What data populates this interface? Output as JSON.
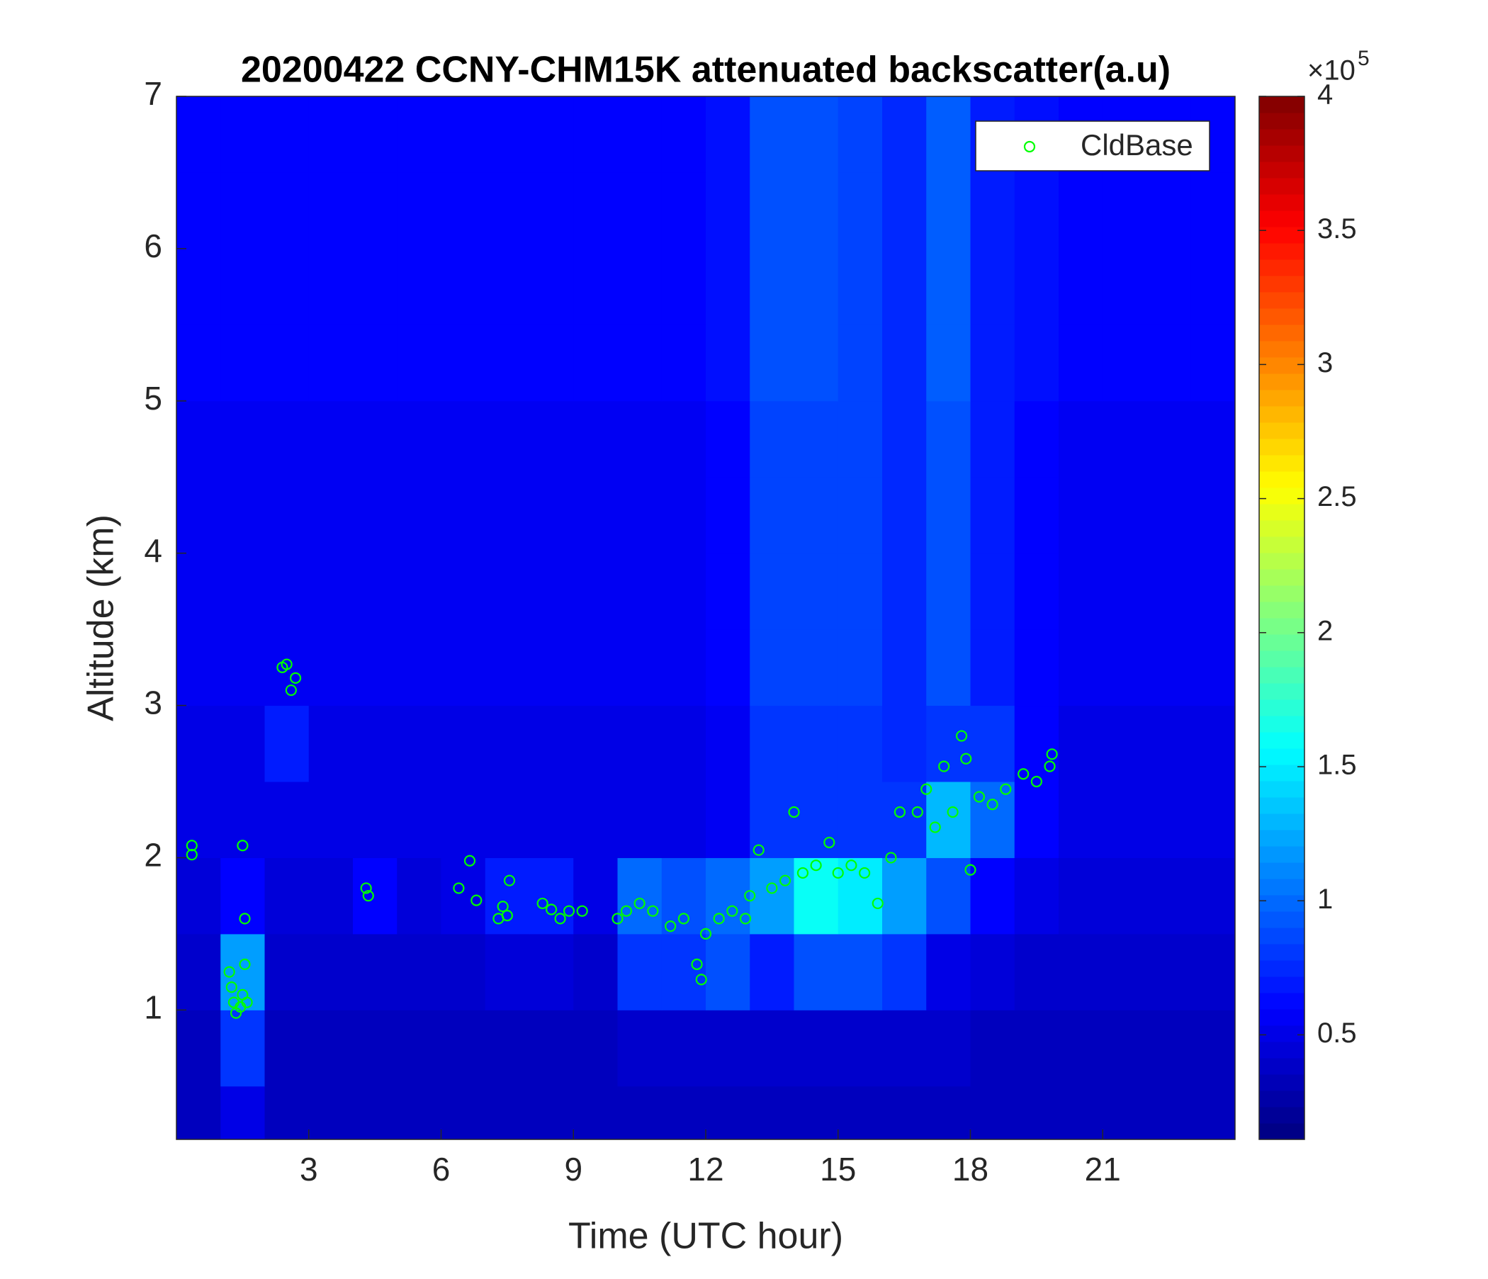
{
  "chart_data": {
    "type": "heatmap",
    "title": "20200422 CCNY-CHM15K attenuated backscatter(a.u)",
    "xlabel": "Time (UTC hour)",
    "ylabel": "Altitude (km)",
    "xlim": [
      0,
      24
    ],
    "xticks": [
      3,
      6,
      9,
      12,
      15,
      18,
      21
    ],
    "ylim": [
      0.15,
      7
    ],
    "yticks": [
      1,
      2,
      3,
      4,
      5,
      6,
      7
    ],
    "clim": [
      0.11,
      4
    ],
    "cticks": [
      0.5,
      1,
      1.5,
      2,
      2.5,
      3,
      3.5,
      4
    ],
    "colormap": "jet",
    "colorbar_multiplier": {
      "base": "×10",
      "exponent": "5"
    },
    "xbins": [
      0,
      1,
      2,
      3,
      4,
      5,
      6,
      7,
      8,
      9,
      10,
      11,
      12,
      13,
      14,
      15,
      16,
      17,
      18,
      19,
      20,
      21,
      22,
      23,
      24
    ],
    "ybins": [
      0.15,
      0.5,
      1,
      1.5,
      2,
      2.5,
      3,
      3.5,
      4,
      4.5,
      5,
      5.5,
      6,
      6.5,
      7
    ],
    "z": [
      [
        0.35,
        0.5,
        0.35,
        0.35,
        0.35,
        0.35,
        0.35,
        0.35,
        0.35,
        0.35,
        0.35,
        0.35,
        0.35,
        0.35,
        0.35,
        0.35,
        0.35,
        0.35,
        0.35,
        0.35,
        0.35,
        0.35,
        0.35,
        0.35
      ],
      [
        0.35,
        0.8,
        0.35,
        0.35,
        0.35,
        0.35,
        0.35,
        0.35,
        0.35,
        0.35,
        0.4,
        0.4,
        0.4,
        0.4,
        0.4,
        0.4,
        0.4,
        0.4,
        0.35,
        0.35,
        0.35,
        0.35,
        0.35,
        0.35
      ],
      [
        0.4,
        1.2,
        0.4,
        0.4,
        0.4,
        0.4,
        0.4,
        0.45,
        0.45,
        0.4,
        0.8,
        0.8,
        0.9,
        0.7,
        0.9,
        0.9,
        0.8,
        0.5,
        0.45,
        0.4,
        0.4,
        0.4,
        0.4,
        0.4
      ],
      [
        0.45,
        0.6,
        0.45,
        0.45,
        0.6,
        0.45,
        0.5,
        0.7,
        0.7,
        0.5,
        1.0,
        0.9,
        1.0,
        1.2,
        1.6,
        1.5,
        1.2,
        0.9,
        0.6,
        0.5,
        0.45,
        0.45,
        0.45,
        0.45
      ],
      [
        0.5,
        0.5,
        0.5,
        0.5,
        0.5,
        0.5,
        0.5,
        0.5,
        0.5,
        0.5,
        0.5,
        0.5,
        0.55,
        0.8,
        0.8,
        0.8,
        0.8,
        1.3,
        1.0,
        0.6,
        0.5,
        0.5,
        0.5,
        0.5
      ],
      [
        0.5,
        0.5,
        0.7,
        0.5,
        0.5,
        0.5,
        0.5,
        0.5,
        0.5,
        0.5,
        0.5,
        0.5,
        0.55,
        0.8,
        0.8,
        0.8,
        0.75,
        0.8,
        0.8,
        0.6,
        0.5,
        0.5,
        0.5,
        0.5
      ],
      [
        0.55,
        0.55,
        0.55,
        0.55,
        0.55,
        0.55,
        0.55,
        0.55,
        0.55,
        0.55,
        0.55,
        0.55,
        0.6,
        0.85,
        0.85,
        0.85,
        0.75,
        0.9,
        0.7,
        0.6,
        0.55,
        0.55,
        0.55,
        0.55
      ],
      [
        0.55,
        0.55,
        0.55,
        0.55,
        0.55,
        0.55,
        0.55,
        0.55,
        0.55,
        0.55,
        0.55,
        0.55,
        0.6,
        0.85,
        0.85,
        0.85,
        0.75,
        0.9,
        0.7,
        0.6,
        0.55,
        0.55,
        0.55,
        0.55
      ],
      [
        0.55,
        0.55,
        0.55,
        0.55,
        0.55,
        0.55,
        0.55,
        0.55,
        0.55,
        0.55,
        0.55,
        0.55,
        0.6,
        0.85,
        0.85,
        0.85,
        0.75,
        0.9,
        0.7,
        0.6,
        0.55,
        0.55,
        0.55,
        0.55
      ],
      [
        0.55,
        0.55,
        0.55,
        0.55,
        0.55,
        0.55,
        0.55,
        0.55,
        0.55,
        0.55,
        0.55,
        0.55,
        0.6,
        0.85,
        0.85,
        0.85,
        0.75,
        0.9,
        0.7,
        0.6,
        0.55,
        0.55,
        0.55,
        0.55
      ],
      [
        0.6,
        0.6,
        0.6,
        0.6,
        0.6,
        0.6,
        0.6,
        0.6,
        0.6,
        0.6,
        0.6,
        0.6,
        0.65,
        0.9,
        0.9,
        0.85,
        0.75,
        0.95,
        0.7,
        0.65,
        0.6,
        0.6,
        0.6,
        0.6
      ],
      [
        0.6,
        0.6,
        0.6,
        0.6,
        0.6,
        0.6,
        0.6,
        0.6,
        0.6,
        0.6,
        0.6,
        0.6,
        0.65,
        0.9,
        0.9,
        0.85,
        0.75,
        0.95,
        0.7,
        0.65,
        0.6,
        0.6,
        0.6,
        0.6
      ],
      [
        0.6,
        0.6,
        0.6,
        0.6,
        0.6,
        0.6,
        0.6,
        0.6,
        0.6,
        0.6,
        0.6,
        0.6,
        0.65,
        0.9,
        0.9,
        0.85,
        0.75,
        0.95,
        0.7,
        0.65,
        0.6,
        0.6,
        0.6,
        0.6
      ],
      [
        0.6,
        0.6,
        0.6,
        0.6,
        0.6,
        0.6,
        0.6,
        0.6,
        0.6,
        0.6,
        0.6,
        0.6,
        0.65,
        0.9,
        0.9,
        0.85,
        0.75,
        0.95,
        0.7,
        0.65,
        0.6,
        0.6,
        0.6,
        0.6
      ]
    ],
    "legend": "northeast",
    "series": [
      {
        "name": "CldBase",
        "color": "#00ff00",
        "type": "scatter",
        "x": [
          0.35,
          0.35,
          1.2,
          1.25,
          1.3,
          1.35,
          1.45,
          1.5,
          1.55,
          1.5,
          1.55,
          1.6,
          2.4,
          2.5,
          2.6,
          2.7,
          4.3,
          4.35,
          6.4,
          6.65,
          6.8,
          7.3,
          7.4,
          7.5,
          7.55,
          8.3,
          8.5,
          8.7,
          8.9,
          9.2,
          10,
          10.2,
          10.5,
          10.8,
          11.2,
          11.5,
          11.8,
          11.9,
          12,
          12.3,
          12.6,
          12.9,
          13,
          13.2,
          13.5,
          13.8,
          14,
          14.2,
          14.5,
          14.8,
          15,
          15.3,
          15.6,
          15.9,
          16.2,
          16.4,
          16.8,
          17,
          17.2,
          17.4,
          17.6,
          17.8,
          17.9,
          18,
          18.2,
          18.5,
          18.8,
          19.2,
          19.5,
          19.8,
          19.85
        ],
        "values": [
          2.02,
          2.08,
          1.25,
          1.15,
          1.05,
          0.98,
          1.02,
          1.1,
          1.3,
          2.08,
          1.6,
          1.05,
          3.25,
          3.27,
          3.1,
          3.18,
          1.8,
          1.75,
          1.8,
          1.98,
          1.72,
          1.6,
          1.68,
          1.62,
          1.85,
          1.7,
          1.66,
          1.6,
          1.65,
          1.65,
          1.6,
          1.65,
          1.7,
          1.65,
          1.55,
          1.6,
          1.3,
          1.2,
          1.5,
          1.6,
          1.65,
          1.6,
          1.75,
          2.05,
          1.8,
          1.85,
          2.3,
          1.9,
          1.95,
          2.1,
          1.9,
          1.95,
          1.9,
          1.7,
          2.0,
          2.3,
          2.3,
          2.45,
          2.2,
          2.6,
          2.3,
          2.8,
          2.65,
          1.92,
          2.4,
          2.35,
          2.45,
          2.55,
          2.5,
          2.6,
          2.68
        ]
      }
    ]
  }
}
